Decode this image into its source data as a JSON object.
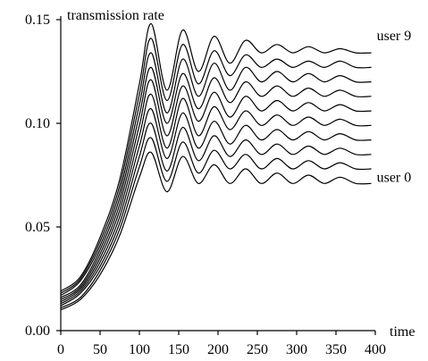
{
  "chart_data": {
    "type": "line",
    "title": "",
    "xlabel": "time",
    "ylabel": "transmission rate",
    "xlim": [
      0,
      400
    ],
    "ylim": [
      0,
      0.15
    ],
    "xticks": [
      "0",
      "50",
      "100",
      "150",
      "200",
      "250",
      "300",
      "350",
      "400"
    ],
    "yticks": [
      "0.00",
      "0.05",
      "0.10",
      "0.15"
    ],
    "grid": false,
    "legend": "none",
    "x": [
      0,
      25,
      50,
      75,
      100,
      115,
      135,
      155,
      175,
      195,
      215,
      235,
      255,
      275,
      295,
      315,
      335,
      355,
      375,
      395
    ],
    "series": [
      {
        "name": "user 0",
        "values": [
          0.01,
          0.015,
          0.027,
          0.046,
          0.074,
          0.086,
          0.067,
          0.084,
          0.071,
          0.08,
          0.071,
          0.078,
          0.071,
          0.076,
          0.071,
          0.075,
          0.071,
          0.074,
          0.071,
          0.071
        ]
      },
      {
        "values": [
          0.011,
          0.016,
          0.029,
          0.049,
          0.079,
          0.093,
          0.072,
          0.091,
          0.076,
          0.087,
          0.078,
          0.085,
          0.078,
          0.083,
          0.078,
          0.082,
          0.078,
          0.081,
          0.078,
          0.078
        ]
      },
      {
        "values": [
          0.012,
          0.018,
          0.031,
          0.052,
          0.084,
          0.1,
          0.077,
          0.098,
          0.082,
          0.094,
          0.084,
          0.092,
          0.085,
          0.09,
          0.085,
          0.089,
          0.085,
          0.088,
          0.085,
          0.085
        ]
      },
      {
        "values": [
          0.013,
          0.019,
          0.033,
          0.055,
          0.089,
          0.107,
          0.083,
          0.105,
          0.088,
          0.101,
          0.09,
          0.099,
          0.092,
          0.097,
          0.092,
          0.096,
          0.092,
          0.095,
          0.092,
          0.092
        ]
      },
      {
        "values": [
          0.014,
          0.02,
          0.035,
          0.058,
          0.094,
          0.114,
          0.088,
          0.112,
          0.094,
          0.108,
          0.097,
          0.106,
          0.099,
          0.104,
          0.099,
          0.103,
          0.099,
          0.102,
          0.099,
          0.099
        ]
      },
      {
        "values": [
          0.015,
          0.021,
          0.037,
          0.061,
          0.099,
          0.121,
          0.094,
          0.118,
          0.101,
          0.115,
          0.103,
          0.113,
          0.106,
          0.111,
          0.106,
          0.11,
          0.106,
          0.109,
          0.106,
          0.106
        ]
      },
      {
        "values": [
          0.016,
          0.022,
          0.039,
          0.064,
          0.104,
          0.127,
          0.1,
          0.124,
          0.107,
          0.122,
          0.11,
          0.12,
          0.113,
          0.118,
          0.113,
          0.117,
          0.113,
          0.116,
          0.113,
          0.113
        ]
      },
      {
        "values": [
          0.017,
          0.024,
          0.041,
          0.067,
          0.109,
          0.134,
          0.105,
          0.131,
          0.113,
          0.129,
          0.116,
          0.127,
          0.12,
          0.125,
          0.12,
          0.124,
          0.12,
          0.123,
          0.12,
          0.12
        ]
      },
      {
        "values": [
          0.018,
          0.025,
          0.043,
          0.07,
          0.114,
          0.141,
          0.111,
          0.138,
          0.119,
          0.135,
          0.123,
          0.133,
          0.127,
          0.131,
          0.127,
          0.13,
          0.127,
          0.13,
          0.127,
          0.127
        ]
      },
      {
        "name": "user 9",
        "values": [
          0.019,
          0.026,
          0.045,
          0.073,
          0.119,
          0.148,
          0.116,
          0.145,
          0.125,
          0.142,
          0.129,
          0.14,
          0.134,
          0.138,
          0.134,
          0.137,
          0.134,
          0.136,
          0.134,
          0.134
        ]
      }
    ]
  }
}
